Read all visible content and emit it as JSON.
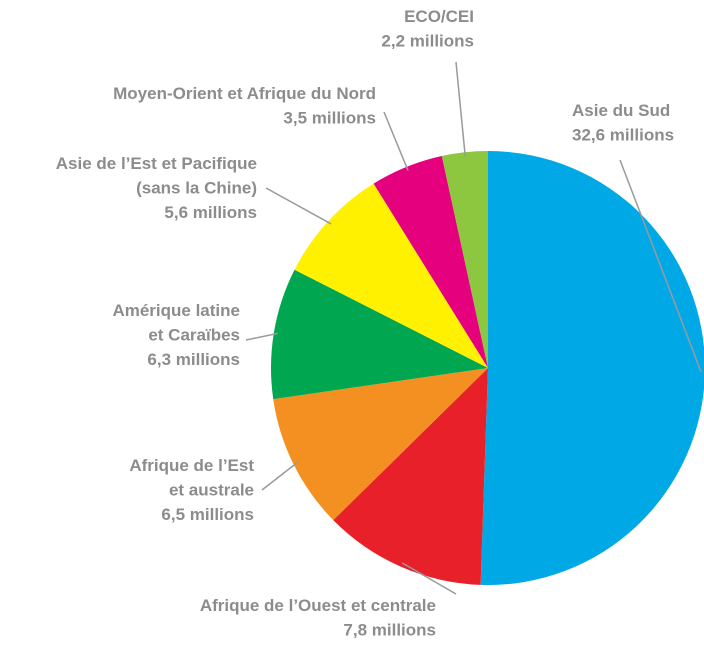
{
  "chart_data": {
    "type": "pie",
    "categories": [
      "Asie du Sud",
      "Afrique de l’Ouest et centrale",
      "Afrique de l’Est\net australe",
      "Amérique latine\net Caraïbes",
      "Asie de l’Est et Pacifique\n(sans la Chine)",
      "Moyen-Orient et Afrique du Nord",
      "ECO/CEI"
    ],
    "values": [
      32.6,
      7.8,
      6.5,
      6.3,
      5.6,
      3.5,
      2.2
    ],
    "value_labels": [
      "32,6 millions",
      "7,8 millions",
      "6,5 millions",
      "6,3 millions",
      "5,6 millions",
      "3,5 millions",
      "2,2 millions"
    ],
    "colors": [
      "#00a9e6",
      "#e8202a",
      "#f39021",
      "#00a650",
      "#fff100",
      "#e5007e",
      "#8dc63f"
    ]
  }
}
